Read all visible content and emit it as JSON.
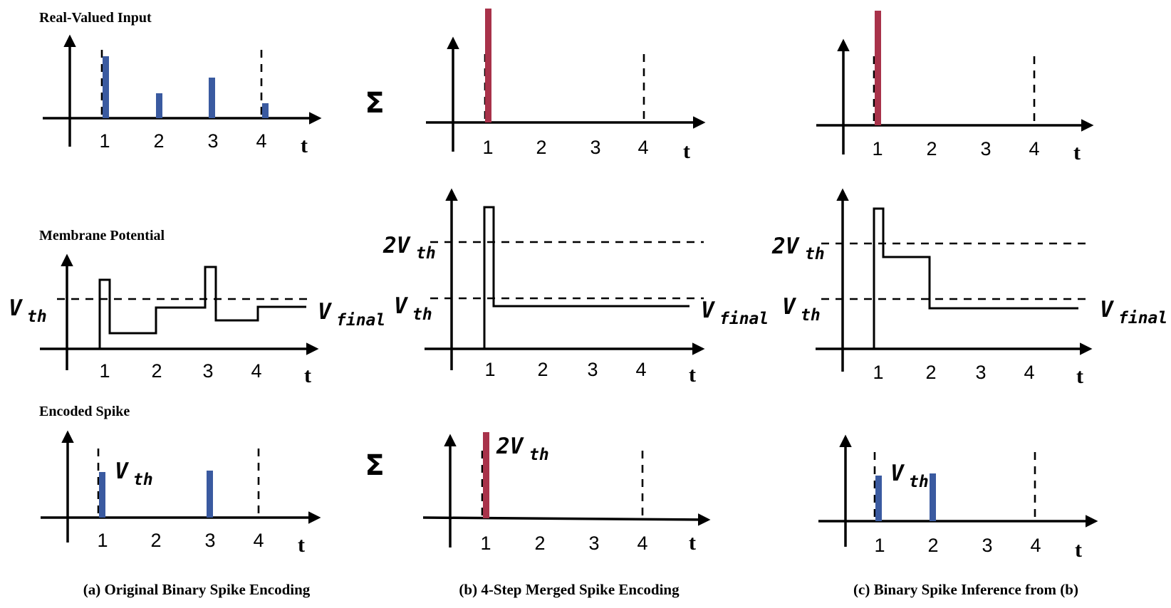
{
  "row_labels": {
    "real_valued_input": "Real-Valued Input",
    "membrane_potential": "Membrane Potential",
    "encoded_spike": "Encoded Spike"
  },
  "captions": {
    "a": "(a) Original Binary Spike Encoding",
    "b": "(b) 4-Step Merged Spike Encoding",
    "c": "(c) Binary Spike Inference from (b)"
  },
  "axis": {
    "ticks": [
      "1",
      "2",
      "3",
      "4"
    ],
    "time_label": "t"
  },
  "sigma": "Σ",
  "math": {
    "v": "V",
    "two_v": "2V",
    "th": "th",
    "final": "final"
  },
  "colors": {
    "blue_spike": "#3a5aa0",
    "red_spike": "#a8324a",
    "line": "#000000"
  }
}
